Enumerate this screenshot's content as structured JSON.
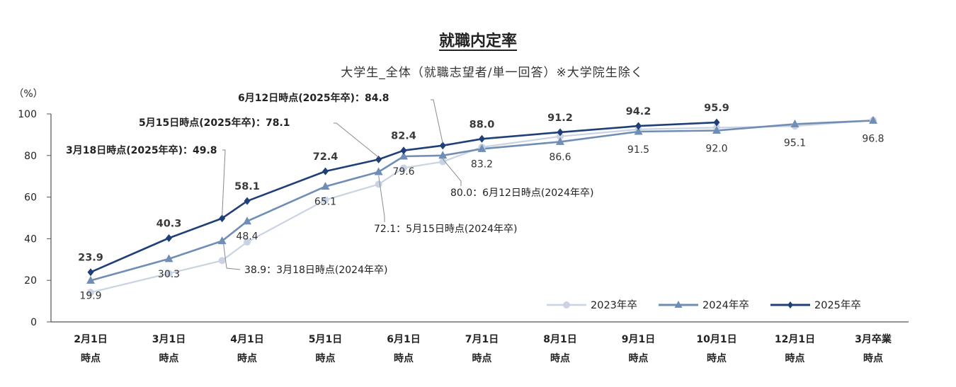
{
  "chart_data": {
    "type": "line",
    "title": "就職内定率",
    "subtitle": "大学生_全体（就職志望者/単一回答）※大学院生除く",
    "ylabel": "（%）",
    "ylim": [
      0,
      100
    ],
    "yticks": [
      "0",
      "20",
      "40",
      "60",
      "80",
      "100"
    ],
    "categories": [
      {
        "line1": "2月1日",
        "line2": "時点"
      },
      {
        "line1": "3月1日",
        "line2": "時点"
      },
      {
        "line1": "4月1日",
        "line2": "時点"
      },
      {
        "line1": "5月1日",
        "line2": "時点"
      },
      {
        "line1": "6月1日",
        "line2": "時点"
      },
      {
        "line1": "7月1日",
        "line2": "時点"
      },
      {
        "line1": "8月1日",
        "line2": "時点"
      },
      {
        "line1": "9月1日",
        "line2": "時点"
      },
      {
        "line1": "10月1日",
        "line2": "時点"
      },
      {
        "line1": "12月1日",
        "line2": "時点"
      },
      {
        "line1": "3月卒業",
        "line2": "時点"
      }
    ],
    "series": [
      {
        "name": "2023年卒",
        "color": "#c9d3e3",
        "marker": "circle",
        "points": [
          {
            "x": 0,
            "y": 14.2
          },
          {
            "x": 1,
            "y": 23.3
          },
          {
            "x": 1.68,
            "y": 29.5
          },
          {
            "x": 2,
            "y": 38.4
          },
          {
            "x": 3,
            "y": 58.6
          },
          {
            "x": 3.68,
            "y": 66.2
          },
          {
            "x": 4,
            "y": 74.0
          },
          {
            "x": 4.5,
            "y": 77.0
          },
          {
            "x": 5,
            "y": 84.0
          },
          {
            "x": 6,
            "y": 89.2
          },
          {
            "x": 7,
            "y": 92.6
          },
          {
            "x": 8,
            "y": 93.4
          },
          {
            "x": 9,
            "y": 94.1
          },
          {
            "x": 10,
            "y": 97.0
          }
        ]
      },
      {
        "name": "2024年卒",
        "color": "#6f8db5",
        "marker": "triangle",
        "points": [
          {
            "x": 0,
            "y": 19.9
          },
          {
            "x": 1,
            "y": 30.3
          },
          {
            "x": 1.68,
            "y": 38.9
          },
          {
            "x": 2,
            "y": 48.4
          },
          {
            "x": 3,
            "y": 65.1
          },
          {
            "x": 3.68,
            "y": 72.1
          },
          {
            "x": 4,
            "y": 79.6
          },
          {
            "x": 4.5,
            "y": 80.0
          },
          {
            "x": 5,
            "y": 83.2
          },
          {
            "x": 6,
            "y": 86.6
          },
          {
            "x": 7,
            "y": 91.5
          },
          {
            "x": 8,
            "y": 92.0
          },
          {
            "x": 9,
            "y": 95.1
          },
          {
            "x": 10,
            "y": 96.8
          }
        ]
      },
      {
        "name": "2025年卒",
        "color": "#1f3f78",
        "marker": "diamond",
        "points": [
          {
            "x": 0,
            "y": 23.9
          },
          {
            "x": 1,
            "y": 40.3
          },
          {
            "x": 1.68,
            "y": 49.8
          },
          {
            "x": 2,
            "y": 58.1
          },
          {
            "x": 3,
            "y": 72.4
          },
          {
            "x": 3.68,
            "y": 78.1
          },
          {
            "x": 4,
            "y": 82.4
          },
          {
            "x": 4.5,
            "y": 84.8
          },
          {
            "x": 5,
            "y": 88.0
          },
          {
            "x": 6,
            "y": 91.2
          },
          {
            "x": 7,
            "y": 94.2
          },
          {
            "x": 8,
            "y": 95.9
          }
        ]
      }
    ],
    "value_labels_2025": [
      {
        "x": 0,
        "text": "23.9"
      },
      {
        "x": 1,
        "text": "40.3"
      },
      {
        "x": 2,
        "text": "58.1"
      },
      {
        "x": 3,
        "text": "72.4"
      },
      {
        "x": 4,
        "text": "82.4"
      },
      {
        "x": 5,
        "text": "88.0"
      },
      {
        "x": 6,
        "text": "91.2"
      },
      {
        "x": 7,
        "text": "94.2"
      },
      {
        "x": 8,
        "text": "95.9"
      }
    ],
    "value_labels_2024": [
      {
        "x": 0,
        "text": "19.9"
      },
      {
        "x": 1,
        "text": "30.3"
      },
      {
        "x": 2,
        "text": "48.4"
      },
      {
        "x": 3,
        "text": "65.1"
      },
      {
        "x": 4,
        "text": "79.6"
      },
      {
        "x": 5,
        "text": "83.2"
      },
      {
        "x": 6,
        "text": "86.6"
      },
      {
        "x": 7,
        "text": "91.5"
      },
      {
        "x": 8,
        "text": "92.0"
      },
      {
        "x": 9,
        "text": "95.1"
      },
      {
        "x": 10,
        "text": "96.8"
      }
    ],
    "annotations": [
      {
        "x": 1.68,
        "series": "2025年卒",
        "prefix": "3月18日時点(2025年卒)：",
        "value": "49.8"
      },
      {
        "x": 3.68,
        "series": "2025年卒",
        "prefix": "5月15日時点(2025年卒)：",
        "value": "78.1"
      },
      {
        "x": 4.5,
        "series": "2025年卒",
        "prefix": "6月12日時点(2025年卒)：",
        "value": "84.8"
      },
      {
        "x": 1.68,
        "series": "2024年卒",
        "value": "38.9",
        "suffix": "：3月18日時点(2024年卒)"
      },
      {
        "x": 3.68,
        "series": "2024年卒",
        "value": "72.1",
        "suffix": "：5月15日時点(2024年卒)"
      },
      {
        "x": 4.5,
        "series": "2024年卒",
        "value": "80.0",
        "suffix": "：6月12日時点(2024年卒)"
      }
    ],
    "legend_position": "bottom-right",
    "grid": false
  }
}
